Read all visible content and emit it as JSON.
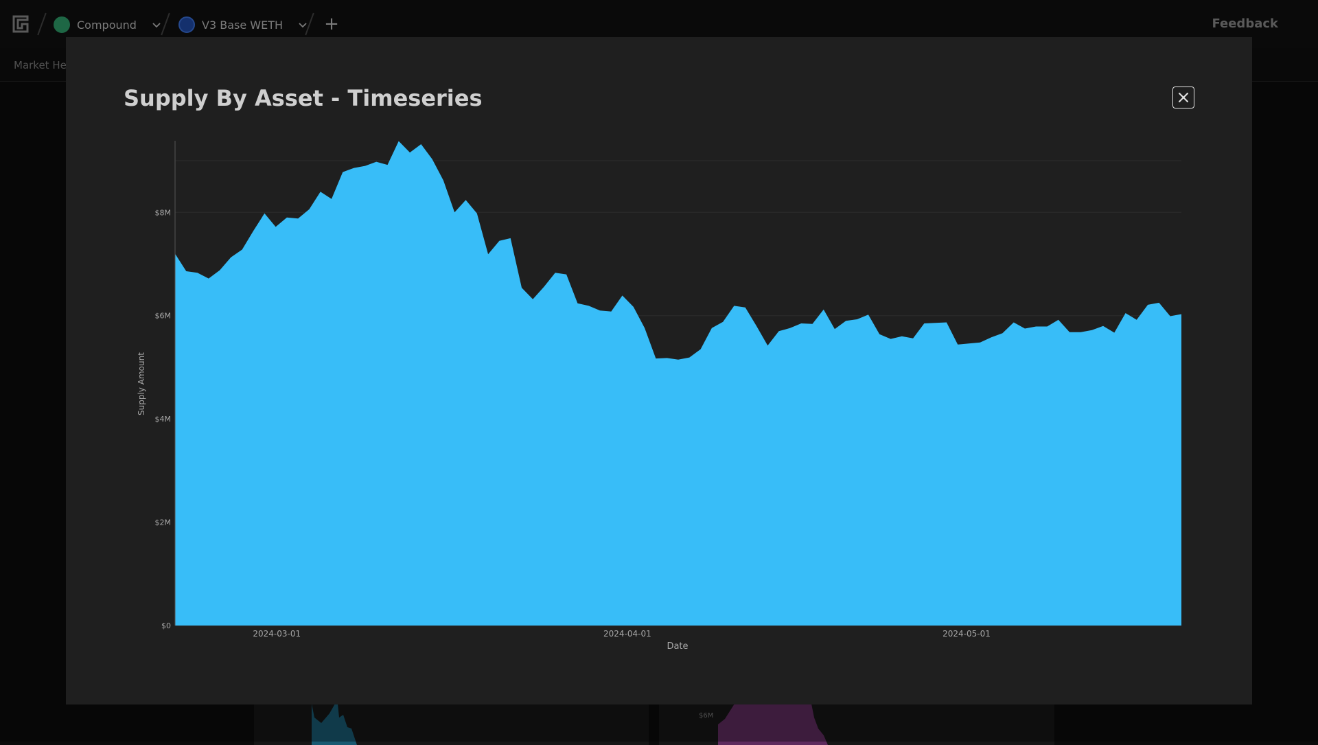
{
  "topbar": {
    "breadcrumbs": [
      {
        "label": "Compound",
        "icon": "compound-logo-icon",
        "color": "#2f9e6b"
      },
      {
        "label": "V3 Base WETH",
        "icon": "weth-logo-icon",
        "color": "#1f4aa8"
      }
    ],
    "add_label": "+",
    "feedback_label": "Feedback"
  },
  "subnav": {
    "tab_label": "Market Hea"
  },
  "background": {
    "card_tick": "$6M"
  },
  "modal": {
    "title": "Supply By Asset - Timeseries",
    "close_icon": "close-icon"
  },
  "chart_data": {
    "type": "area",
    "title": "",
    "xlabel": "Date",
    "ylabel": "Supply Amount",
    "ylim": [
      0,
      9400000
    ],
    "y_ticks": [
      {
        "value": 0,
        "label": "$0"
      },
      {
        "value": 2000000,
        "label": "$2M"
      },
      {
        "value": 4000000,
        "label": "$4M"
      },
      {
        "value": 6000000,
        "label": "$6M"
      },
      {
        "value": 8000000,
        "label": "$8M"
      }
    ],
    "x_ticks": [
      {
        "label": "2024-03-01"
      },
      {
        "label": "2024-04-01"
      },
      {
        "label": "2024-05-01"
      }
    ],
    "x_range": [
      "2024-02-21",
      "2024-05-20"
    ],
    "grid": true,
    "color": "#38bdf8",
    "series": [
      {
        "values": [
          7200000,
          6860000,
          6830000,
          6720000,
          6880000,
          7130000,
          7280000,
          7640000,
          7980000,
          7720000,
          7900000,
          7880000,
          8060000,
          8400000,
          8260000,
          8780000,
          8860000,
          8900000,
          8980000,
          8920000,
          9380000,
          9160000,
          9320000,
          9030000,
          8620000,
          8000000,
          8240000,
          7980000,
          7190000,
          7450000,
          7500000,
          6540000,
          6320000,
          6560000,
          6830000,
          6800000,
          6240000,
          6190000,
          6100000,
          6080000,
          6390000,
          6170000,
          5760000,
          5170000,
          5180000,
          5150000,
          5190000,
          5350000,
          5760000,
          5880000,
          6190000,
          6160000,
          5800000,
          5420000,
          5700000,
          5760000,
          5850000,
          5840000,
          6120000,
          5740000,
          5900000,
          5930000,
          6020000,
          5640000,
          5550000,
          5600000,
          5560000,
          5850000,
          5860000,
          5870000,
          5440000,
          5460000,
          5480000,
          5580000,
          5660000,
          5870000,
          5750000,
          5790000,
          5790000,
          5920000,
          5680000,
          5680000,
          5720000,
          5800000,
          5670000,
          6050000,
          5920000,
          6210000,
          6250000,
          5990000,
          6030000
        ]
      }
    ]
  }
}
